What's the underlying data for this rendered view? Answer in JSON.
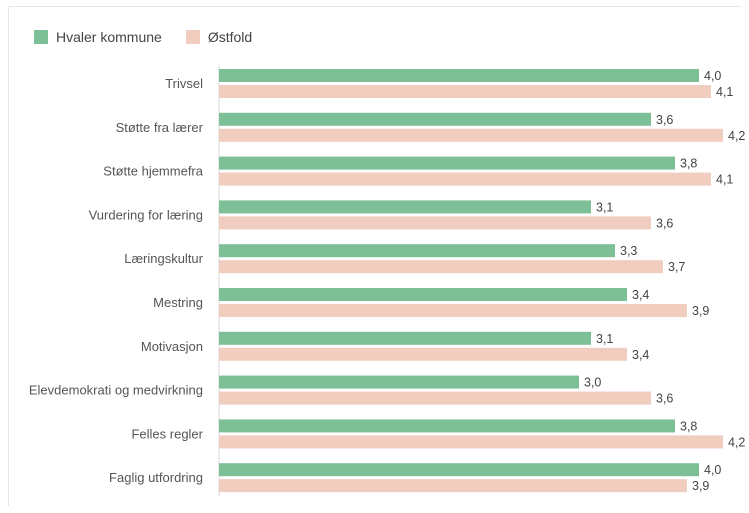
{
  "chart_data": {
    "type": "bar",
    "orientation": "horizontal",
    "categories": [
      "Trivsel",
      "Støtte fra lærer",
      "Støtte hjemmefra",
      "Vurdering for læring",
      "Læringskultur",
      "Mestring",
      "Motivasjon",
      "Elevdemokrati og medvirkning",
      "Felles regler",
      "Faglig utfordring"
    ],
    "series": [
      {
        "name": "Hvaler kommune",
        "color": "#7dbf97",
        "values": [
          4.0,
          3.6,
          3.8,
          3.1,
          3.3,
          3.4,
          3.1,
          3.0,
          3.8,
          4.0
        ],
        "labels": [
          "4,0",
          "3,6",
          "3,8",
          "3,1",
          "3,3",
          "3,4",
          "3,1",
          "3,0",
          "3,8",
          "4,0"
        ]
      },
      {
        "name": "Østfold",
        "color": "#f0cdbf",
        "values": [
          4.1,
          4.2,
          4.1,
          3.6,
          3.7,
          3.9,
          3.4,
          3.6,
          4.2,
          3.9
        ],
        "labels": [
          "4,1",
          "4,2",
          "4,1",
          "3,6",
          "3,7",
          "3,9",
          "3,4",
          "3,6",
          "4,2",
          "3,9"
        ]
      }
    ],
    "xlim": [
      0,
      4.2
    ],
    "legend_position": "top-left",
    "grid": false
  }
}
